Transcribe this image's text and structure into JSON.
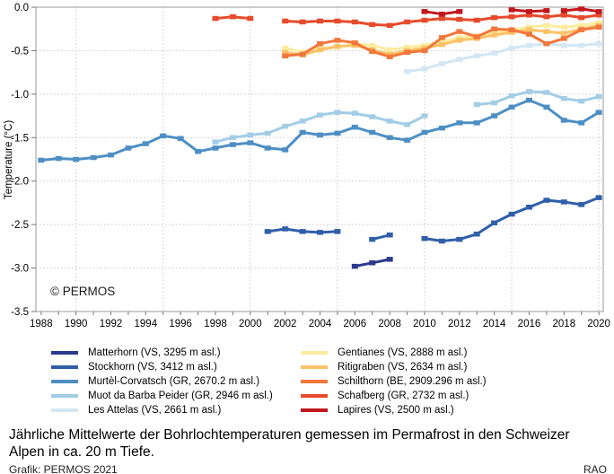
{
  "caption": {
    "text": "Jährliche Mittelwerte der Bohrlochtemperaturen gemessen im Permafrost in den Schweizer Alpen in ca. 20 m Tiefe.",
    "credit": "Grafik: PERMOS 2021",
    "initials": "RAO"
  },
  "chart_data": {
    "type": "line",
    "title": "",
    "xlabel": "",
    "ylabel": "Temperature (°C)",
    "watermark": "© PERMOS",
    "xlim": [
      1987.7,
      2020.25
    ],
    "ylim": [
      -3.5,
      0
    ],
    "grid": "dotted, horizontal every 0.5 °C, vertical every 5 years",
    "legend_position": "below, two columns",
    "yticks": [
      {
        "label": "0.0",
        "value": 0
      },
      {
        "label": "-0.5",
        "value": -0.5
      },
      {
        "label": "-1.0",
        "value": -1.0
      },
      {
        "label": "-1.5",
        "value": -1.5
      },
      {
        "label": "-2.0",
        "value": -2.0
      },
      {
        "label": "-2.5",
        "value": -2.5
      },
      {
        "label": "-3.0",
        "value": -3.0
      },
      {
        "label": "-3.5",
        "value": -3.5
      }
    ],
    "xticks": [
      {
        "label": "1988",
        "value": 1988
      },
      {
        "label": "1990",
        "value": 1990
      },
      {
        "label": "1992",
        "value": 1992
      },
      {
        "label": "1994",
        "value": 1994
      },
      {
        "label": "1996",
        "value": 1996
      },
      {
        "label": "1998",
        "value": 1998
      },
      {
        "label": "2000",
        "value": 2000
      },
      {
        "label": "2002",
        "value": 2002
      },
      {
        "label": "2004",
        "value": 2004
      },
      {
        "label": "2006",
        "value": 2006
      },
      {
        "label": "2008",
        "value": 2008
      },
      {
        "label": "2010",
        "value": 2010
      },
      {
        "label": "2012",
        "value": 2012
      },
      {
        "label": "2014",
        "value": 2014
      },
      {
        "label": "2016",
        "value": 2016
      },
      {
        "label": "2018",
        "value": 2018
      },
      {
        "label": "2020",
        "value": 2020
      }
    ],
    "minor_tick_years": [
      1988,
      2020
    ],
    "grid_years": [
      1990,
      1995,
      2000,
      2005,
      2010,
      2015,
      2020
    ],
    "series": [
      {
        "name": "Matterhorn (VS, 3295 m asl.)",
        "color": "#2b3a8f",
        "segments": [
          [
            [
              2006,
              -2.98
            ],
            [
              2007,
              -2.94
            ],
            [
              2008,
              -2.9
            ]
          ]
        ]
      },
      {
        "name": "Stockhorn (VS, 3412 m asl.)",
        "color": "#2f5fa9",
        "segments": [
          [
            [
              2001,
              -2.58
            ],
            [
              2002,
              -2.55
            ],
            [
              2003,
              -2.58
            ],
            [
              2004,
              -2.59
            ],
            [
              2005,
              -2.58
            ]
          ],
          [
            [
              2007,
              -2.67
            ],
            [
              2008,
              -2.62
            ]
          ],
          [
            [
              2010,
              -2.66
            ],
            [
              2011,
              -2.69
            ],
            [
              2012,
              -2.67
            ],
            [
              2013,
              -2.61
            ],
            [
              2014,
              -2.48
            ],
            [
              2015,
              -2.38
            ],
            [
              2016,
              -2.3
            ],
            [
              2017,
              -2.22
            ],
            [
              2018,
              -2.24
            ],
            [
              2019,
              -2.27
            ],
            [
              2020,
              -2.19
            ]
          ]
        ]
      },
      {
        "name": "Murtèl-Corvatsch (GR, 2670.2 m asl.)",
        "color": "#4d8fc4",
        "segments": [
          [
            [
              1988,
              -1.76
            ],
            [
              1989,
              -1.74
            ],
            [
              1990,
              -1.75
            ],
            [
              1991,
              -1.73
            ],
            [
              1992,
              -1.7
            ],
            [
              1993,
              -1.62
            ],
            [
              1994,
              -1.57
            ],
            [
              1995,
              -1.48
            ],
            [
              1996,
              -1.51
            ],
            [
              1997,
              -1.66
            ],
            [
              1998,
              -1.62
            ],
            [
              1999,
              -1.58
            ],
            [
              2000,
              -1.56
            ],
            [
              2001,
              -1.62
            ],
            [
              2002,
              -1.64
            ],
            [
              2003,
              -1.44
            ],
            [
              2004,
              -1.47
            ],
            [
              2005,
              -1.45
            ],
            [
              2006,
              -1.38
            ],
            [
              2007,
              -1.44
            ],
            [
              2008,
              -1.5
            ],
            [
              2009,
              -1.53
            ],
            [
              2010,
              -1.44
            ],
            [
              2011,
              -1.39
            ],
            [
              2012,
              -1.33
            ],
            [
              2013,
              -1.33
            ],
            [
              2014,
              -1.25
            ],
            [
              2015,
              -1.15
            ],
            [
              2016,
              -1.07
            ],
            [
              2017,
              -1.15
            ],
            [
              2018,
              -1.3
            ],
            [
              2019,
              -1.33
            ],
            [
              2020,
              -1.21
            ]
          ]
        ]
      },
      {
        "name": "Muot da Barba Peider (GR, 2946 m asl.)",
        "color": "#a3cde6",
        "segments": [
          [
            [
              1998,
              -1.55
            ],
            [
              1999,
              -1.5
            ],
            [
              2000,
              -1.47
            ],
            [
              2001,
              -1.45
            ],
            [
              2002,
              -1.37
            ],
            [
              2003,
              -1.31
            ],
            [
              2004,
              -1.24
            ],
            [
              2005,
              -1.21
            ],
            [
              2006,
              -1.22
            ],
            [
              2007,
              -1.26
            ],
            [
              2008,
              -1.31
            ],
            [
              2009,
              -1.35
            ],
            [
              2010,
              -1.25
            ]
          ],
          [
            [
              2013,
              -1.12
            ],
            [
              2014,
              -1.1
            ],
            [
              2015,
              -1.02
            ],
            [
              2016,
              -0.97
            ],
            [
              2017,
              -0.98
            ],
            [
              2018,
              -1.05
            ],
            [
              2019,
              -1.08
            ],
            [
              2020,
              -1.03
            ]
          ]
        ]
      },
      {
        "name": "Les Attelas (VS, 2661 m asl.)",
        "color": "#d2e7f3",
        "segments": [
          [
            [
              2009,
              -0.74
            ],
            [
              2010,
              -0.71
            ],
            [
              2011,
              -0.65
            ],
            [
              2012,
              -0.6
            ],
            [
              2013,
              -0.56
            ],
            [
              2014,
              -0.53
            ],
            [
              2015,
              -0.47
            ],
            [
              2016,
              -0.44
            ],
            [
              2017,
              -0.42
            ],
            [
              2018,
              -0.44
            ],
            [
              2019,
              -0.44
            ],
            [
              2020,
              -0.42
            ]
          ]
        ]
      },
      {
        "name": "Gentianes (VS, 2888 m asl.)",
        "color": "#fcec9f",
        "segments": [
          [
            [
              2002,
              -0.47
            ],
            [
              2003,
              -0.52
            ],
            [
              2004,
              -0.47
            ],
            [
              2005,
              -0.46
            ],
            [
              2006,
              -0.42
            ],
            [
              2007,
              -0.44
            ],
            [
              2008,
              -0.49
            ],
            [
              2009,
              -0.46
            ],
            [
              2010,
              -0.44
            ],
            [
              2011,
              -0.4
            ],
            [
              2012,
              -0.35
            ],
            [
              2013,
              -0.33
            ],
            [
              2014,
              -0.29
            ],
            [
              2015,
              -0.26
            ],
            [
              2016,
              -0.23
            ],
            [
              2017,
              -0.21
            ],
            [
              2018,
              -0.23
            ],
            [
              2019,
              -0.21
            ],
            [
              2020,
              -0.18
            ]
          ]
        ]
      },
      {
        "name": "Ritigraben (VS, 2634 m asl.)",
        "color": "#fbc268",
        "segments": [
          [
            [
              2002,
              -0.52
            ],
            [
              2003,
              -0.55
            ],
            [
              2004,
              -0.49
            ],
            [
              2005,
              -0.45
            ],
            [
              2006,
              -0.44
            ],
            [
              2007,
              -0.49
            ],
            [
              2008,
              -0.54
            ],
            [
              2009,
              -0.5
            ],
            [
              2010,
              -0.47
            ],
            [
              2011,
              -0.43
            ],
            [
              2012,
              -0.38
            ],
            [
              2013,
              -0.36
            ],
            [
              2014,
              -0.32
            ],
            [
              2015,
              -0.29
            ],
            [
              2016,
              -0.26
            ],
            [
              2017,
              -0.28
            ],
            [
              2018,
              -0.3
            ],
            [
              2019,
              -0.25
            ],
            [
              2020,
              -0.21
            ]
          ]
        ]
      },
      {
        "name": "Schilthorn (BE, 2909.296 m asl.)",
        "color": "#f1773c",
        "segments": [
          [
            [
              2002,
              -0.56
            ],
            [
              2003,
              -0.54
            ],
            [
              2004,
              -0.42
            ],
            [
              2005,
              -0.38
            ],
            [
              2006,
              -0.41
            ],
            [
              2007,
              -0.51
            ],
            [
              2008,
              -0.57
            ],
            [
              2009,
              -0.52
            ],
            [
              2010,
              -0.5
            ],
            [
              2011,
              -0.35
            ],
            [
              2012,
              -0.28
            ],
            [
              2013,
              -0.34
            ],
            [
              2014,
              -0.25
            ],
            [
              2015,
              -0.26
            ],
            [
              2016,
              -0.31
            ],
            [
              2017,
              -0.42
            ],
            [
              2018,
              -0.36
            ],
            [
              2019,
              -0.26
            ],
            [
              2020,
              -0.23
            ]
          ]
        ]
      },
      {
        "name": "Schafberg (GR, 2732 m asl.)",
        "color": "#e64b2c",
        "segments": [
          [
            [
              1998,
              -0.13
            ],
            [
              1999,
              -0.11
            ],
            [
              2000,
              -0.13
            ]
          ],
          [
            [
              2002,
              -0.16
            ],
            [
              2003,
              -0.17
            ],
            [
              2004,
              -0.16
            ],
            [
              2005,
              -0.16
            ],
            [
              2006,
              -0.17
            ],
            [
              2007,
              -0.2
            ],
            [
              2008,
              -0.21
            ],
            [
              2009,
              -0.17
            ],
            [
              2010,
              -0.15
            ],
            [
              2011,
              -0.13
            ],
            [
              2012,
              -0.14
            ],
            [
              2013,
              -0.15
            ],
            [
              2014,
              -0.12
            ],
            [
              2015,
              -0.11
            ],
            [
              2016,
              -0.09
            ],
            [
              2017,
              -0.11
            ],
            [
              2018,
              -0.09
            ],
            [
              2019,
              -0.12
            ],
            [
              2020,
              -0.09
            ]
          ]
        ]
      },
      {
        "name": "Lapires (VS, 2500 m asl.)",
        "color": "#c1171d",
        "segments": [
          [
            [
              2010,
              -0.05
            ],
            [
              2011,
              -0.08
            ],
            [
              2012,
              -0.05
            ]
          ],
          [
            [
              2015,
              -0.03
            ],
            [
              2016,
              -0.05
            ],
            [
              2017,
              -0.04
            ]
          ],
          [
            [
              2018,
              -0.04
            ],
            [
              2019,
              -0.02
            ],
            [
              2020,
              -0.05
            ]
          ]
        ]
      }
    ]
  }
}
